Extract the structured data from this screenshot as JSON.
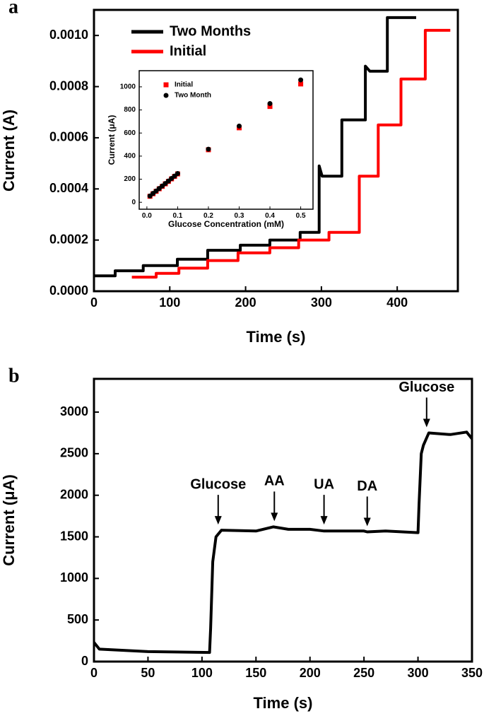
{
  "chart_data": [
    {
      "type": "line",
      "panel_label": "a",
      "xlabel": "Time (s)",
      "ylabel": "Current (A)",
      "xlim": [
        0,
        480
      ],
      "xticks": [
        0,
        100,
        200,
        300,
        400
      ],
      "ylim": [
        0,
        0.0011
      ],
      "yticks": [
        {
          "value": 0,
          "label": "0.0000"
        },
        {
          "value": 0.0002,
          "label": "0.0002"
        },
        {
          "value": 0.0004,
          "label": "0.0004"
        },
        {
          "value": 0.0006,
          "label": "0.0006"
        },
        {
          "value": 0.0008,
          "label": "0.0008"
        },
        {
          "value": 0.001,
          "label": "0.0010"
        }
      ],
      "legend": "upper left",
      "series": [
        {
          "name": "Two Months",
          "color": "#000000",
          "x": [
            0,
            28,
            28,
            65,
            65,
            110,
            110,
            150,
            150,
            193,
            193,
            232,
            232,
            272,
            272,
            297,
            297,
            301,
            327,
            327,
            358,
            358,
            364,
            387,
            387,
            425
          ],
          "values": [
            6e-05,
            6e-05,
            8e-05,
            8e-05,
            0.0001,
            0.0001,
            0.000125,
            0.000125,
            0.00016,
            0.00016,
            0.00018,
            0.00018,
            0.0002,
            0.0002,
            0.00023,
            0.00023,
            0.00049,
            0.00045,
            0.00045,
            0.00067,
            0.00067,
            0.00088,
            0.00086,
            0.00086,
            0.00107,
            0.00107
          ]
        },
        {
          "name": "Initial",
          "color": "#ff0000",
          "x": [
            50,
            82,
            82,
            112,
            112,
            150,
            150,
            190,
            190,
            232,
            232,
            270,
            270,
            310,
            310,
            350,
            350,
            375,
            375,
            405,
            405,
            437,
            437,
            470
          ],
          "values": [
            5.5e-05,
            5.5e-05,
            7e-05,
            7e-05,
            9e-05,
            9e-05,
            0.00012,
            0.00012,
            0.00015,
            0.00015,
            0.00017,
            0.00017,
            0.0002,
            0.0002,
            0.00023,
            0.00023,
            0.00045,
            0.00045,
            0.00065,
            0.00065,
            0.00083,
            0.00083,
            0.00102,
            0.00102
          ]
        }
      ]
    },
    {
      "type": "scatter",
      "xlabel": "Glucose Concentration (mM)",
      "ylabel": "Current (μA)",
      "xlim": [
        -0.025,
        0.54
      ],
      "xticks": [
        {
          "value": 0,
          "label": "0.0"
        },
        0.1,
        0.2,
        0.3,
        0.4,
        0.5
      ],
      "ylim": [
        -60,
        1140
      ],
      "yticks": [
        0,
        200,
        400,
        600,
        800,
        1000
      ],
      "legend": "upper left",
      "x": [
        0.01,
        0.02,
        0.03,
        0.04,
        0.05,
        0.06,
        0.07,
        0.08,
        0.09,
        0.1,
        0.2,
        0.3,
        0.4,
        0.5
      ],
      "series": [
        {
          "name": "Initial",
          "color": "#ff0000",
          "marker": "square",
          "values": [
            52,
            74,
            95,
            117,
            138,
            160,
            181,
            203,
            224,
            246,
            455,
            645,
            830,
            1025
          ]
        },
        {
          "name": "Two Month",
          "color": "#000000",
          "marker": "circle",
          "values": [
            55,
            77,
            98,
            120,
            141,
            163,
            184,
            206,
            227,
            249,
            460,
            660,
            855,
            1060
          ]
        }
      ]
    },
    {
      "type": "line",
      "panel_label": "b",
      "xlabel": "Time (s)",
      "ylabel": "Current (μA)",
      "xlim": [
        0,
        350
      ],
      "xticks": [
        0,
        50,
        100,
        150,
        200,
        250,
        300,
        350
      ],
      "ylim": [
        0,
        3400
      ],
      "yticks": [
        0,
        500,
        1000,
        1500,
        2000,
        2500,
        3000
      ],
      "x": [
        0,
        5,
        50,
        107,
        108,
        110,
        113,
        118,
        150,
        166,
        180,
        200,
        213,
        250,
        253,
        270,
        300,
        301,
        303,
        305,
        310,
        330,
        345,
        350
      ],
      "series": [
        {
          "color": "#000000",
          "values": [
            230,
            150,
            120,
            110,
            400,
            1200,
            1500,
            1580,
            1570,
            1620,
            1590,
            1590,
            1570,
            1570,
            1560,
            1570,
            1550,
            1900,
            2500,
            2600,
            2750,
            2730,
            2760,
            2680
          ]
        }
      ],
      "annotations": [
        {
          "text": "Glucose",
          "x": 115,
          "y": 1580
        },
        {
          "text": "AA",
          "x": 167,
          "y": 1620
        },
        {
          "text": "UA",
          "x": 213,
          "y": 1580
        },
        {
          "text": "DA",
          "x": 253,
          "y": 1560
        },
        {
          "text": "Glucose",
          "x": 308,
          "y": 2750
        }
      ]
    }
  ]
}
